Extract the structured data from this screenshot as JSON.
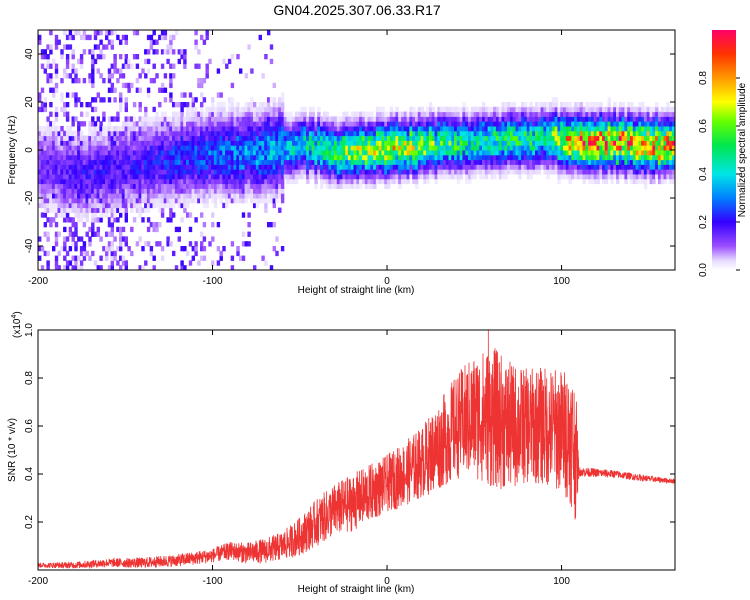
{
  "title": "GN04.2025.307.06.33.R17",
  "chart_data": [
    {
      "type": "heatmap",
      "name": "spectrogram",
      "xlabel": "Height of straight line (km)",
      "ylabel": "Frequency (Hz)",
      "xlim": [
        -200,
        165
      ],
      "ylim": [
        -50,
        50
      ],
      "xticks": [
        -200,
        -100,
        0,
        100
      ],
      "yticks": [
        -40,
        -20,
        0,
        20,
        40
      ],
      "colorbar": {
        "label": "Normalized spectral amplitude",
        "range": [
          0,
          1
        ],
        "ticks": [
          "0.0",
          "0.2",
          "0.4",
          "0.6",
          "0.8"
        ]
      },
      "ridge_frequency": {
        "x": [
          -200,
          -175,
          -150,
          -125,
          -100,
          -75,
          -50,
          -25,
          0,
          25,
          50,
          75,
          90,
          100,
          110,
          130,
          165
        ],
        "y": [
          -8,
          -12,
          -8,
          -5,
          -3,
          -2,
          1,
          -2,
          0,
          1,
          2,
          3,
          4,
          3,
          3,
          2,
          1
        ]
      },
      "peak_amplitude": {
        "x": [
          -200,
          -175,
          -150,
          -125,
          -100,
          -75,
          -50,
          -25,
          0,
          25,
          50,
          75,
          90,
          100,
          110,
          130,
          165
        ],
        "y": [
          0.15,
          0.2,
          0.2,
          0.25,
          0.3,
          0.35,
          0.45,
          0.65,
          0.75,
          0.6,
          0.5,
          0.55,
          0.5,
          0.75,
          0.9,
          0.9,
          0.85
        ]
      }
    },
    {
      "type": "line",
      "name": "snr",
      "xlabel": "Height of straight line (km)",
      "ylabel": "SNR (10 * v/v)",
      "y_multiplier": "(x10",
      "y_multiplier_exp": "4",
      "y_multiplier_close": ")",
      "xlim": [
        -200,
        165
      ],
      "ylim": [
        0,
        1.0
      ],
      "xticks": [
        -200,
        -100,
        0,
        100
      ],
      "yticks": [
        "0.2",
        "0.4",
        "0.6",
        "0.8",
        "1.0"
      ],
      "color": "#ee3333",
      "envelope": {
        "x": [
          -200,
          -180,
          -160,
          -140,
          -120,
          -100,
          -90,
          -80,
          -70,
          -60,
          -50,
          -40,
          -30,
          -20,
          -10,
          0,
          10,
          20,
          30,
          40,
          50,
          60,
          70,
          80,
          90,
          100,
          105,
          108,
          110,
          130,
          150,
          165
        ],
        "y": [
          0.02,
          0.02,
          0.03,
          0.03,
          0.04,
          0.06,
          0.08,
          0.07,
          0.08,
          0.1,
          0.14,
          0.2,
          0.25,
          0.28,
          0.32,
          0.36,
          0.4,
          0.45,
          0.52,
          0.6,
          0.64,
          0.64,
          0.6,
          0.6,
          0.6,
          0.58,
          0.56,
          0.5,
          0.41,
          0.4,
          0.38,
          0.37
        ]
      },
      "spread": {
        "x": [
          -200,
          -100,
          -60,
          -40,
          -20,
          0,
          20,
          40,
          60,
          80,
          100,
          108,
          110,
          165
        ],
        "y": [
          0.01,
          0.03,
          0.06,
          0.1,
          0.12,
          0.12,
          0.15,
          0.22,
          0.3,
          0.24,
          0.26,
          0.3,
          0.02,
          0.01
        ]
      },
      "peak": {
        "x": 58,
        "y": 1.0
      }
    }
  ]
}
